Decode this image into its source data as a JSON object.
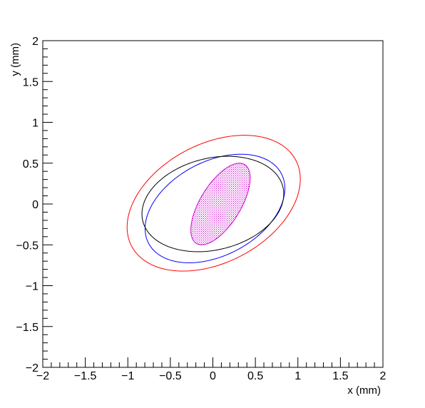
{
  "chart_data": {
    "type": "scatter",
    "title": "",
    "xlabel": "x (mm)",
    "ylabel": "y (mm)",
    "xlim": [
      -2,
      2
    ],
    "ylim": [
      -2,
      2
    ],
    "grid": false,
    "x_ticks": [
      {
        "value": -2,
        "label": "−2"
      },
      {
        "value": -1.5,
        "label": "−1.5"
      },
      {
        "value": -1,
        "label": "−1"
      },
      {
        "value": -0.5,
        "label": "−0.5"
      },
      {
        "value": 0,
        "label": "0"
      },
      {
        "value": 0.5,
        "label": "0.5"
      },
      {
        "value": 1,
        "label": "1"
      },
      {
        "value": 1.5,
        "label": "1.5"
      },
      {
        "value": 2,
        "label": "2"
      }
    ],
    "y_ticks": [
      {
        "value": -2,
        "label": "−2"
      },
      {
        "value": -1.5,
        "label": "−1.5"
      },
      {
        "value": -1,
        "label": "−1"
      },
      {
        "value": -0.5,
        "label": "−0.5"
      },
      {
        "value": 0,
        "label": "0"
      },
      {
        "value": 0.5,
        "label": "0.5"
      },
      {
        "value": 1,
        "label": "1"
      },
      {
        "value": 1.5,
        "label": "1.5"
      },
      {
        "value": 2,
        "label": "2"
      }
    ],
    "series": [
      {
        "color": "#ff0000",
        "fill": false,
        "cx": 0.01,
        "cy": 0.01,
        "a": 1.1,
        "b": 0.72,
        "angle_deg": 30
      },
      {
        "color": "#0000ff",
        "fill": false,
        "cx": 0.025,
        "cy": -0.055,
        "a": 0.89,
        "b": 0.57,
        "angle_deg": 30
      },
      {
        "color": "#000000",
        "fill": false,
        "cx": 0.0,
        "cy": 0.0,
        "a": 0.85,
        "b": 0.56,
        "angle_deg": 15
      },
      {
        "color": "#cc00cc",
        "fill": true,
        "cx": 0.09,
        "cy": 0.0,
        "a": 0.56,
        "b": 0.24,
        "angle_deg": 60
      }
    ]
  }
}
